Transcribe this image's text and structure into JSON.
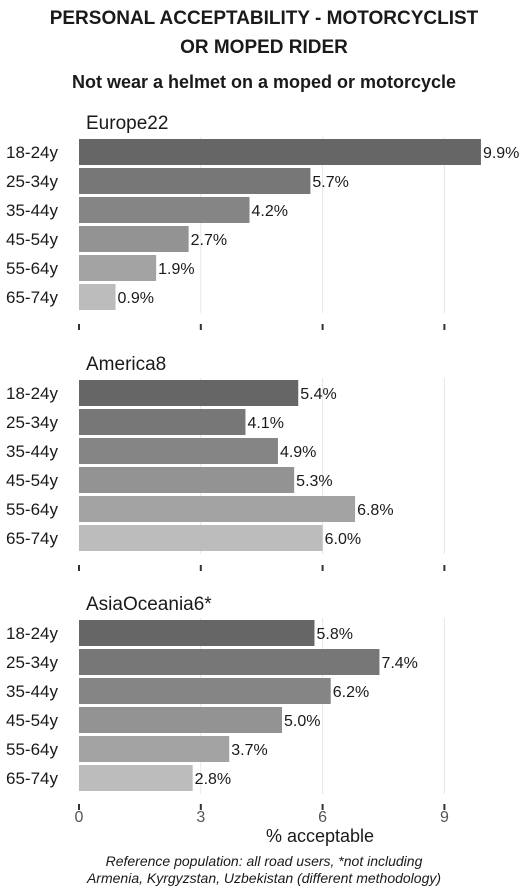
{
  "title_line1": "PERSONAL ACCEPTABILITY - MOTORCYCLIST",
  "title_line2": "OR MOPED RIDER",
  "subtitle": "Not wear a helmet on a moped or motorcycle",
  "footnote_line1": "Reference population: all road users, *not including",
  "footnote_line2": "Armenia, Kyrgyzstan, Uzbekistan (different methodology)",
  "colors": [
    "#666666",
    "#777777",
    "#858585",
    "#939393",
    "#a3a3a3",
    "#bcbcbc"
  ],
  "chart_data": {
    "type": "bar",
    "orientation": "horizontal",
    "xlabel": "% acceptable",
    "xlim": [
      0,
      10
    ],
    "xticks": [
      0,
      3,
      6,
      9
    ],
    "categories": [
      "18-24y",
      "25-34y",
      "35-44y",
      "45-54y",
      "55-64y",
      "65-74y"
    ],
    "value_suffix": "%",
    "panels": [
      {
        "name": "Europe22",
        "values": [
          9.9,
          5.7,
          4.2,
          2.7,
          1.9,
          0.9
        ]
      },
      {
        "name": "America8",
        "values": [
          5.4,
          4.1,
          4.9,
          5.3,
          6.8,
          6.0
        ]
      },
      {
        "name": "AsiaOceania6*",
        "values": [
          5.8,
          7.4,
          6.2,
          5.0,
          3.7,
          2.8
        ]
      }
    ]
  }
}
